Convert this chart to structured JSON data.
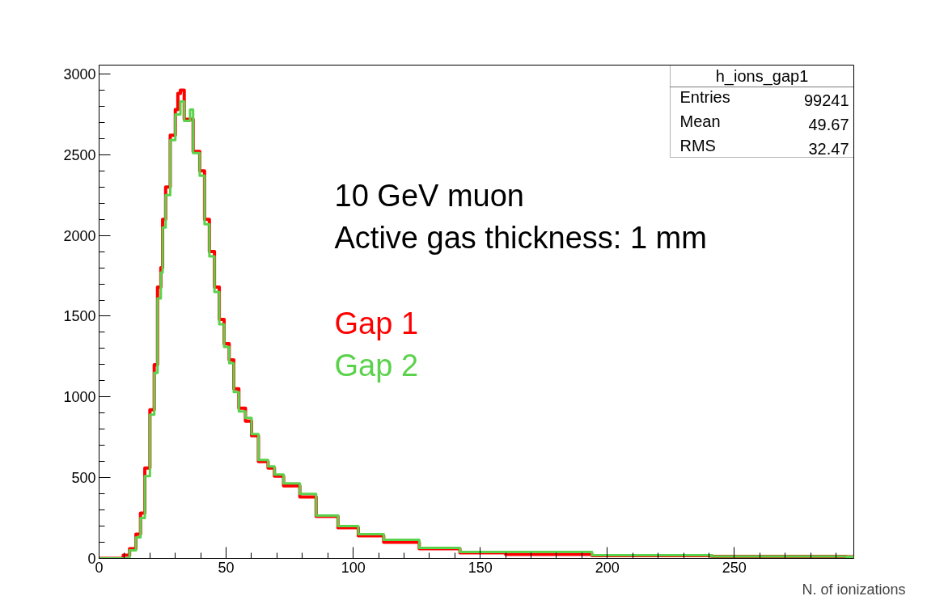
{
  "chart_data": {
    "type": "step",
    "xlabel": "N. of ionizations",
    "xlim": [
      0,
      297
    ],
    "ylim": [
      0,
      3055
    ],
    "xticks": [
      0,
      50,
      100,
      150,
      200,
      250
    ],
    "yticks": [
      0,
      500,
      1000,
      1500,
      2000,
      2500,
      3000
    ],
    "grid": false,
    "annotations": [
      "10 GeV muon",
      "Active gas thickness: 1 mm",
      "h_ions_gap1",
      "Entries 99241",
      "Mean 49.67",
      "RMS 32.47"
    ],
    "series": [
      {
        "name": "Gap 1",
        "color": "#ff0000",
        "x": [
          0,
          9.5,
          12,
          14.5,
          16.3,
          18,
          20,
          21.7,
          23,
          24.3,
          25,
          26.2,
          28,
          30,
          31,
          32,
          33.5,
          35,
          37,
          39.6,
          41.5,
          43.4,
          45.4,
          47.3,
          49.2,
          51.2,
          53,
          55,
          57.6,
          60,
          62.7,
          66.5,
          69,
          72.6,
          79,
          85.4,
          94,
          102,
          112,
          126,
          142,
          160,
          194,
          241,
          294,
          297
        ],
        "values": [
          0,
          20,
          60,
          150,
          280,
          560,
          920,
          1200,
          1680,
          1800,
          2100,
          2300,
          2620,
          2780,
          2880,
          2900,
          2720,
          2720,
          2520,
          2400,
          2100,
          1900,
          1680,
          1480,
          1330,
          1230,
          1050,
          930,
          850,
          760,
          600,
          560,
          510,
          450,
          380,
          260,
          190,
          140,
          100,
          60,
          35,
          25,
          18,
          12,
          10,
          10
        ]
      },
      {
        "name": "Gap 2",
        "color": "#5bd24c",
        "x": [
          0,
          9.5,
          12,
          14.5,
          16.3,
          18,
          20,
          21.7,
          23,
          24.3,
          25,
          26.2,
          28,
          30,
          32,
          33.5,
          35.8,
          37,
          39.6,
          41.5,
          43.4,
          45.4,
          47.3,
          49.2,
          51.2,
          53,
          55,
          57.6,
          60,
          62.7,
          66.5,
          69,
          72.6,
          79,
          85.4,
          94,
          102,
          112,
          126,
          142,
          160,
          194,
          241,
          294,
          297
        ],
        "values": [
          0,
          0,
          50,
          130,
          250,
          510,
          890,
          1150,
          1610,
          1770,
          2050,
          2250,
          2590,
          2750,
          2830,
          2710,
          2780,
          2510,
          2370,
          2070,
          1870,
          1650,
          1450,
          1310,
          1210,
          1030,
          910,
          870,
          770,
          610,
          570,
          520,
          465,
          400,
          265,
          200,
          150,
          115,
          65,
          40,
          40,
          20,
          12,
          10,
          10
        ]
      }
    ]
  }
}
